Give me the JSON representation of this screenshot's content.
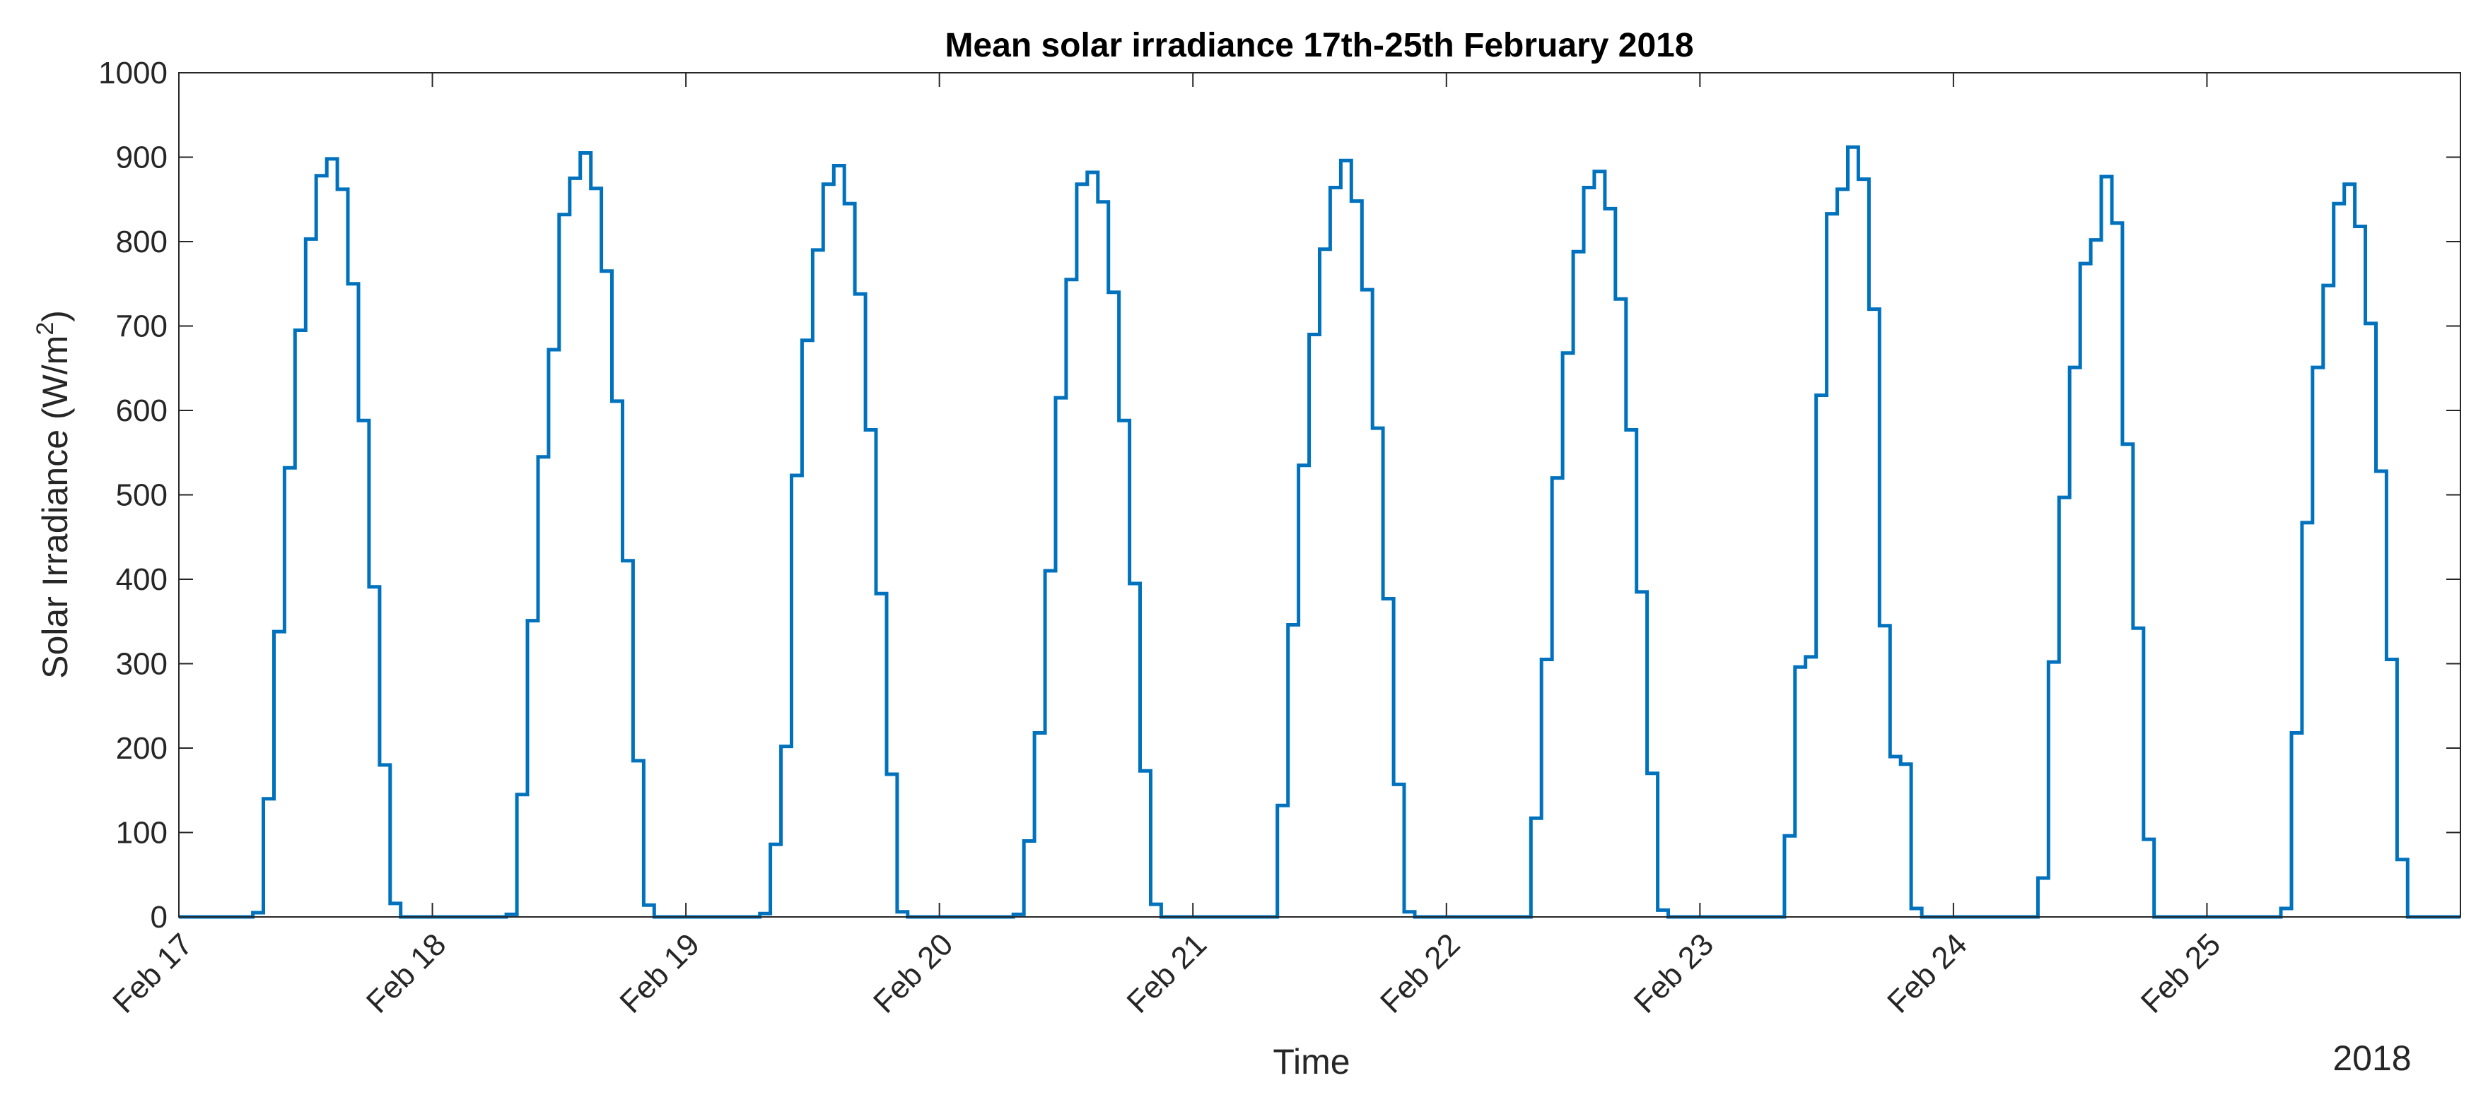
{
  "chart_data": {
    "type": "line",
    "style": "stairs",
    "title": "Mean solar irradiance 17th-25th February 2018",
    "xlabel": "Time",
    "ylabel": {
      "main": "Solar Irradiance (W/m",
      "superscript": "2",
      "close": ")"
    },
    "x_secondary_label": "2018",
    "xlim_days": [
      0,
      9
    ],
    "ylim": [
      0,
      1000
    ],
    "y_ticks": [
      "0",
      "100",
      "200",
      "300",
      "400",
      "500",
      "600",
      "700",
      "800",
      "900",
      "1000"
    ],
    "x_tick_labels": [
      "Feb 17",
      "Feb 18",
      "Feb 19",
      "Feb 20",
      "Feb 21",
      "Feb 22",
      "Feb 23",
      "Feb 24",
      "Feb 25"
    ],
    "x_tick_days": [
      0,
      1,
      2,
      3,
      4,
      5,
      6,
      7,
      8
    ],
    "series_color": "#0072BD",
    "step_hours": 1,
    "series": [
      {
        "name": "Feb 17",
        "start_hour": 7,
        "values": [
          5,
          140,
          338,
          532,
          695,
          803,
          878,
          898,
          862,
          750,
          588,
          391,
          180,
          16
        ]
      },
      {
        "name": "Feb 18",
        "start_hour": 7,
        "values": [
          3,
          145,
          351,
          545,
          672,
          832,
          875,
          905,
          863,
          765,
          611,
          422,
          185,
          14
        ]
      },
      {
        "name": "Feb 19",
        "start_hour": 7,
        "values": [
          4,
          86,
          202,
          523,
          683,
          790,
          868,
          890,
          845,
          738,
          577,
          383,
          169,
          6
        ]
      },
      {
        "name": "Feb 20",
        "start_hour": 7,
        "values": [
          3,
          90,
          218,
          410,
          615,
          755,
          868,
          882,
          847,
          740,
          588,
          395,
          173,
          15
        ]
      },
      {
        "name": "Feb 21",
        "start_hour": 7,
        "values": [
          0,
          132,
          346,
          535,
          690,
          791,
          864,
          896,
          848,
          743,
          579,
          377,
          157,
          6
        ]
      },
      {
        "name": "Feb 22",
        "start_hour": 7,
        "values": [
          0,
          117,
          305,
          520,
          668,
          788,
          864,
          883,
          839,
          732,
          577,
          385,
          170,
          8
        ]
      },
      {
        "name": "Feb 23",
        "start_hour": 7,
        "values": [
          0,
          96,
          296,
          308,
          618,
          833,
          862,
          912,
          874,
          720,
          345,
          190,
          181,
          10
        ]
      },
      {
        "name": "Feb 24",
        "start_hour": 7,
        "values": [
          0,
          46,
          302,
          497,
          651,
          774,
          802,
          877,
          822,
          560,
          342,
          92,
          0,
          0
        ]
      },
      {
        "name": "Feb 25",
        "start_hour": 7,
        "values": [
          10,
          218,
          467,
          651,
          748,
          845,
          868,
          818,
          703,
          528,
          305,
          68,
          0,
          0
        ]
      }
    ]
  }
}
